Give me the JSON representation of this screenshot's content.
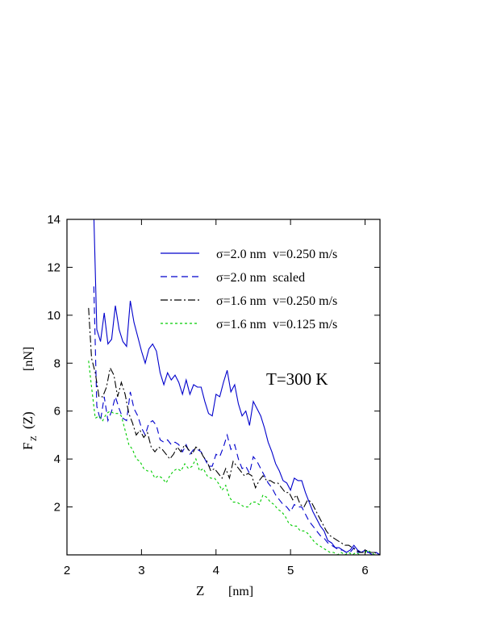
{
  "chart_data": {
    "type": "line",
    "title": "",
    "xlabel": "Z",
    "xunit": "[nm]",
    "ylabel_main": "F",
    "ylabel_sub": "Z",
    "ylabel_arg": "(Z)",
    "yunit": "[nN]",
    "xlim": [
      2,
      6.2
    ],
    "ylim": [
      0,
      14
    ],
    "xticks": [
      2,
      3,
      4,
      5,
      6
    ],
    "yticks": [
      2,
      4,
      6,
      8,
      10,
      12,
      14
    ],
    "grid": false,
    "legend_position": "top-right",
    "annotation": "T=300 K",
    "series": [
      {
        "name": "σ=2.0 nm  v=0.250 m/s",
        "color": "#0000cc",
        "dash": "solid",
        "x": [
          2.36,
          2.4,
          2.45,
          2.5,
          2.55,
          2.6,
          2.65,
          2.7,
          2.75,
          2.8,
          2.85,
          2.9,
          2.95,
          3.0,
          3.05,
          3.1,
          3.15,
          3.2,
          3.25,
          3.3,
          3.35,
          3.4,
          3.45,
          3.5,
          3.55,
          3.6,
          3.65,
          3.7,
          3.75,
          3.8,
          3.85,
          3.9,
          3.95,
          4.0,
          4.05,
          4.1,
          4.15,
          4.2,
          4.25,
          4.3,
          4.35,
          4.4,
          4.45,
          4.5,
          4.55,
          4.6,
          4.65,
          4.7,
          4.75,
          4.8,
          4.85,
          4.9,
          4.95,
          5.0,
          5.05,
          5.1,
          5.15,
          5.2,
          5.25,
          5.3,
          5.35,
          5.4,
          5.45,
          5.5,
          5.55,
          5.6,
          5.65,
          5.7,
          5.75,
          5.8,
          5.85,
          5.9,
          5.95,
          6.0,
          6.05,
          6.1,
          6.15,
          6.2
        ],
        "y": [
          14.2,
          9.4,
          8.9,
          10.1,
          8.8,
          9.0,
          10.4,
          9.4,
          8.9,
          8.7,
          10.6,
          9.7,
          9.1,
          8.5,
          8.0,
          8.6,
          8.8,
          8.5,
          7.6,
          7.1,
          7.6,
          7.3,
          7.5,
          7.2,
          6.7,
          7.3,
          6.7,
          7.1,
          7.0,
          7.0,
          6.4,
          5.9,
          5.8,
          6.7,
          6.6,
          7.2,
          7.7,
          6.8,
          7.1,
          6.3,
          5.8,
          6.0,
          5.4,
          6.4,
          6.1,
          5.8,
          5.3,
          4.7,
          4.3,
          3.8,
          3.5,
          3.1,
          3.0,
          2.7,
          3.2,
          3.1,
          3.1,
          2.6,
          2.2,
          1.8,
          1.5,
          1.2,
          1.0,
          0.6,
          0.5,
          0.3,
          0.3,
          0.2,
          0.1,
          0.2,
          0.4,
          0.2,
          0.1,
          0.2,
          0.1,
          0.1,
          0.1,
          0.0
        ]
      },
      {
        "name": "σ=2.0 nm  scaled",
        "color": "#0000cc",
        "dash": "8,5",
        "x": [
          2.36,
          2.4,
          2.45,
          2.5,
          2.55,
          2.6,
          2.65,
          2.7,
          2.75,
          2.8,
          2.85,
          2.9,
          2.95,
          3.0,
          3.05,
          3.1,
          3.15,
          3.2,
          3.25,
          3.3,
          3.35,
          3.4,
          3.45,
          3.5,
          3.55,
          3.6,
          3.65,
          3.7,
          3.75,
          3.8,
          3.85,
          3.9,
          3.95,
          4.0,
          4.05,
          4.1,
          4.15,
          4.2,
          4.25,
          4.3,
          4.35,
          4.4,
          4.45,
          4.5,
          4.55,
          4.6,
          4.65,
          4.7,
          4.75,
          4.8,
          4.85,
          4.9,
          4.95,
          5.0,
          5.05,
          5.1,
          5.15,
          5.2,
          5.25,
          5.3,
          5.35,
          5.4,
          5.45,
          5.5,
          5.55,
          5.6,
          5.65,
          5.7,
          5.75,
          5.8,
          5.85,
          5.9,
          5.95,
          6.0,
          6.05,
          6.1,
          6.15,
          6.2
        ],
        "y": [
          11.2,
          6.2,
          5.6,
          6.6,
          5.6,
          6.0,
          6.6,
          6.1,
          5.7,
          5.6,
          6.8,
          6.1,
          5.8,
          5.3,
          5.0,
          5.5,
          5.6,
          5.4,
          4.8,
          4.7,
          4.8,
          4.6,
          4.7,
          4.6,
          4.3,
          4.6,
          4.2,
          4.4,
          4.4,
          4.3,
          4.0,
          3.7,
          3.7,
          4.2,
          4.1,
          4.5,
          5.0,
          4.4,
          4.6,
          4.0,
          3.6,
          3.7,
          3.4,
          4.1,
          3.9,
          3.6,
          3.3,
          3.0,
          2.8,
          2.5,
          2.3,
          2.1,
          2.0,
          1.8,
          2.1,
          2.0,
          2.0,
          1.7,
          1.4,
          1.2,
          1.0,
          0.8,
          0.7,
          0.5,
          0.4,
          0.3,
          0.2,
          0.2,
          0.1,
          0.1,
          0.3,
          0.1,
          0.1,
          0.1,
          0.1,
          0.0,
          0.1,
          0.0
        ]
      },
      {
        "name": "σ=1.6 nm  v=0.250 m/s",
        "color": "#000000",
        "dash": "9,3,2,3",
        "x": [
          2.29,
          2.33,
          2.38,
          2.43,
          2.48,
          2.53,
          2.58,
          2.63,
          2.68,
          2.73,
          2.78,
          2.83,
          2.88,
          2.93,
          2.98,
          3.03,
          3.08,
          3.13,
          3.18,
          3.23,
          3.28,
          3.33,
          3.38,
          3.43,
          3.48,
          3.53,
          3.58,
          3.63,
          3.68,
          3.73,
          3.78,
          3.83,
          3.88,
          3.93,
          3.98,
          4.03,
          4.08,
          4.13,
          4.18,
          4.23,
          4.28,
          4.33,
          4.38,
          4.43,
          4.48,
          4.53,
          4.58,
          4.63,
          4.68,
          4.73,
          4.78,
          4.83,
          4.88,
          4.93,
          4.98,
          5.03,
          5.08,
          5.13,
          5.18,
          5.23,
          5.28,
          5.33,
          5.38,
          5.43,
          5.48,
          5.53,
          5.58,
          5.63,
          5.68,
          5.73,
          5.78,
          5.83,
          5.88,
          5.93,
          5.98,
          6.03,
          6.08,
          6.13,
          6.18
        ],
        "y": [
          10.3,
          8.2,
          7.6,
          6.6,
          6.6,
          7.0,
          7.8,
          7.5,
          6.6,
          7.2,
          6.7,
          5.9,
          5.5,
          5.0,
          5.2,
          4.9,
          5.1,
          4.5,
          4.3,
          4.5,
          4.4,
          4.2,
          4.0,
          4.2,
          4.5,
          4.3,
          4.6,
          4.4,
          4.2,
          4.5,
          4.4,
          4.1,
          3.9,
          3.5,
          3.6,
          3.4,
          3.2,
          3.6,
          3.2,
          3.9,
          3.7,
          3.5,
          3.3,
          3.4,
          3.3,
          2.8,
          3.1,
          3.3,
          3.1,
          3.1,
          3.0,
          3.0,
          2.8,
          2.6,
          2.6,
          2.3,
          2.5,
          2.1,
          2.0,
          2.3,
          2.2,
          1.9,
          1.6,
          1.3,
          1.0,
          0.8,
          0.7,
          0.6,
          0.5,
          0.4,
          0.4,
          0.3,
          0.2,
          0.1,
          0.1,
          0.2,
          0.1,
          0.1,
          0.0
        ]
      },
      {
        "name": "σ=1.6 nm  v=0.125 m/s",
        "color": "#00cc00",
        "dash": "3,3",
        "x": [
          2.29,
          2.33,
          2.38,
          2.43,
          2.48,
          2.53,
          2.58,
          2.63,
          2.68,
          2.73,
          2.78,
          2.83,
          2.88,
          2.93,
          2.98,
          3.03,
          3.08,
          3.13,
          3.18,
          3.23,
          3.28,
          3.33,
          3.38,
          3.43,
          3.48,
          3.53,
          3.58,
          3.63,
          3.68,
          3.73,
          3.78,
          3.83,
          3.88,
          3.93,
          3.98,
          4.03,
          4.08,
          4.13,
          4.18,
          4.23,
          4.28,
          4.33,
          4.38,
          4.43,
          4.48,
          4.53,
          4.58,
          4.63,
          4.68,
          4.73,
          4.78,
          4.83,
          4.88,
          4.93,
          4.98,
          5.03,
          5.08,
          5.13,
          5.18,
          5.23,
          5.28,
          5.33,
          5.38,
          5.43,
          5.48,
          5.53,
          5.58,
          5.63,
          5.68,
          5.73,
          5.78,
          5.83,
          5.88,
          5.93,
          5.98,
          6.03,
          6.08,
          6.13,
          6.18
        ],
        "y": [
          8.1,
          7.0,
          5.7,
          5.8,
          5.6,
          5.9,
          6.0,
          5.9,
          5.9,
          5.8,
          5.2,
          4.6,
          4.4,
          4.0,
          3.9,
          3.6,
          3.5,
          3.5,
          3.2,
          3.3,
          3.2,
          3.0,
          3.3,
          3.5,
          3.6,
          3.5,
          3.8,
          3.6,
          3.7,
          4.0,
          3.5,
          3.6,
          3.3,
          3.2,
          3.2,
          3.0,
          2.7,
          2.9,
          2.4,
          2.2,
          2.2,
          2.1,
          2.0,
          2.0,
          2.2,
          2.2,
          2.1,
          2.5,
          2.4,
          2.2,
          2.1,
          1.9,
          1.8,
          1.6,
          1.3,
          1.2,
          1.2,
          1.0,
          1.0,
          0.9,
          0.7,
          0.5,
          0.4,
          0.3,
          0.2,
          0.1,
          0.1,
          0.0,
          0.1,
          0.0,
          0.1,
          0.0,
          0.1,
          0.0,
          0.0,
          0.2,
          0.1,
          0.0,
          0.0
        ]
      }
    ]
  }
}
